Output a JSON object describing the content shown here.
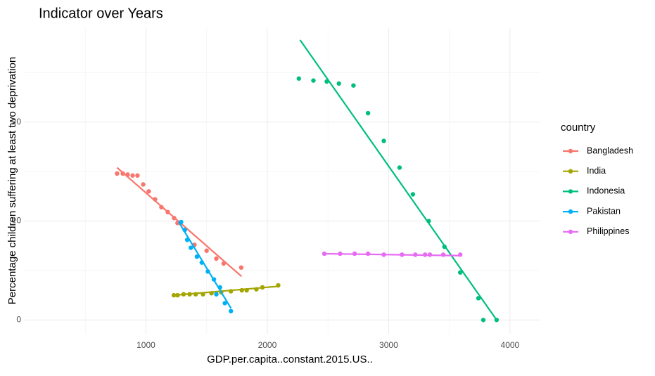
{
  "chart_data": {
    "type": "scatter",
    "title": "Indicator over Years",
    "x_label": "GDP.per.capita..constant.2015.US..",
    "y_label": "Percentage children suffering at least two deprivation",
    "legend_title": "country",
    "legend_position": "right",
    "grid": true,
    "xlim": [
      0,
      4250
    ],
    "ylim": [
      -1.4,
      29.5
    ],
    "xticks": [
      1000,
      2000,
      3000,
      4000
    ],
    "yticks": [
      0,
      10,
      20
    ],
    "series": [
      {
        "name": "Bangladesh",
        "color": "#F8766D",
        "x": [
          762,
          809,
          849,
          890,
          930,
          977,
          1023,
          1075,
          1127,
          1180,
          1232,
          1260,
          1400,
          1500,
          1580,
          1640,
          1785
        ],
        "y": [
          14.8,
          14.8,
          14.7,
          14.6,
          14.6,
          13.7,
          13.0,
          12.2,
          11.4,
          10.9,
          10.3,
          9.8,
          7.6,
          7.0,
          6.2,
          5.7,
          5.3
        ],
        "trend_x": [
          762,
          1788
        ],
        "trend_y": [
          15.4,
          4.4
        ]
      },
      {
        "name": "India",
        "color": "#A3A500",
        "x": [
          1230,
          1260,
          1310,
          1360,
          1410,
          1470,
          1540,
          1620,
          1700,
          1790,
          1830,
          1910,
          1960,
          2090
        ],
        "y": [
          2.5,
          2.5,
          2.6,
          2.6,
          2.6,
          2.6,
          2.7,
          2.8,
          2.9,
          3.0,
          3.0,
          3.1,
          3.3,
          3.5
        ],
        "trend_x": [
          1230,
          2090
        ],
        "trend_y": [
          2.5,
          3.4
        ]
      },
      {
        "name": "Indonesia",
        "color": "#00BF7D",
        "x": [
          2260,
          2380,
          2490,
          2590,
          2710,
          2830,
          2960,
          3090,
          3200,
          3330,
          3460,
          3590,
          3740,
          3780,
          3890
        ],
        "y": [
          24.4,
          24.2,
          24.1,
          23.9,
          23.7,
          20.9,
          18.1,
          15.4,
          12.7,
          10.0,
          7.4,
          4.8,
          2.2,
          0.0,
          0.0
        ],
        "trend_x": [
          2270,
          3890
        ],
        "trend_y": [
          28.3,
          0.0
        ]
      },
      {
        "name": "Pakistan",
        "color": "#00B0F6",
        "x": [
          1290,
          1320,
          1340,
          1370,
          1420,
          1460,
          1510,
          1560,
          1580,
          1610,
          1650,
          1700
        ],
        "y": [
          9.9,
          9.1,
          8.1,
          7.3,
          6.4,
          5.8,
          4.9,
          4.1,
          2.6,
          3.3,
          1.7,
          0.9
        ],
        "trend_x": [
          1270,
          1700
        ],
        "trend_y": [
          9.9,
          1.2
        ]
      },
      {
        "name": "Philippines",
        "color": "#E76BF3",
        "x": [
          2470,
          2600,
          2720,
          2830,
          2960,
          3110,
          3220,
          3300,
          3340,
          3450,
          3590
        ],
        "y": [
          6.7,
          6.7,
          6.7,
          6.7,
          6.6,
          6.6,
          6.6,
          6.6,
          6.6,
          6.6,
          6.6
        ],
        "trend_x": [
          2470,
          3600
        ],
        "trend_y": [
          6.7,
          6.5
        ]
      }
    ]
  }
}
